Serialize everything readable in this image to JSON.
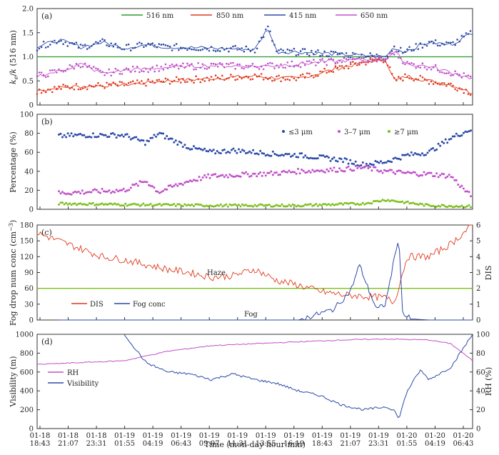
{
  "x_axis": {
    "label": "Time (mon-day hour:min)",
    "ticks": [
      [
        "01-18",
        "18:43"
      ],
      [
        "01-18",
        "21:07"
      ],
      [
        "01-18",
        "23:31"
      ],
      [
        "01-19",
        "01:55"
      ],
      [
        "01-19",
        "04:19"
      ],
      [
        "01-19",
        "06:43"
      ],
      [
        "01-19",
        "09:07"
      ],
      [
        "01-19",
        "11:31"
      ],
      [
        "01-19",
        "13:55"
      ],
      [
        "01-19",
        "16:19"
      ],
      [
        "01-19",
        "18:43"
      ],
      [
        "01-19",
        "21:07"
      ],
      [
        "01-19",
        "23:31"
      ],
      [
        "01-20",
        "01:55"
      ],
      [
        "01-20",
        "04:19"
      ],
      [
        "01-20",
        "06:43"
      ]
    ]
  },
  "chart_data": [
    {
      "panel": "(a)",
      "type": "scatter",
      "ylabel": "ke/k (516 nm)",
      "ylabel_parts": {
        "k1": "k",
        "sub1": "e",
        "slash": "/",
        "k2": "k",
        "rest": " (516 nm)"
      },
      "ylim": [
        0,
        2.0
      ],
      "yticks": [
        "0",
        "0.5",
        "1.0",
        "1.5",
        "2.0"
      ],
      "legend": [
        "516 nm",
        "850 nm",
        "415 nm",
        "650 nm"
      ],
      "legend_placement": "top",
      "colors": {
        "516 nm": "#2e9a2e",
        "850 nm": "#e03a1e",
        "415 nm": "#2c4aa8",
        "650 nm": "#c050c8"
      },
      "series": [
        {
          "name": "516 nm",
          "style": "line",
          "x": [
            0,
            1
          ],
          "y": [
            1.0,
            1.0
          ]
        },
        {
          "name": "850 nm",
          "style": "points+line",
          "x": [
            0,
            0.08,
            0.2,
            0.3,
            0.4,
            0.5,
            0.55,
            0.6,
            0.7,
            0.76,
            0.8,
            0.82,
            0.85,
            0.9,
            0.95,
            1.0
          ],
          "y": [
            0.3,
            0.38,
            0.42,
            0.5,
            0.55,
            0.6,
            0.56,
            0.55,
            0.78,
            0.9,
            0.95,
            0.5,
            0.6,
            0.5,
            0.42,
            0.25
          ]
        },
        {
          "name": "415 nm",
          "style": "points+line",
          "x": [
            0,
            0.05,
            0.1,
            0.15,
            0.2,
            0.25,
            0.3,
            0.4,
            0.5,
            0.53,
            0.55,
            0.6,
            0.7,
            0.8,
            0.82,
            0.84,
            0.9,
            0.95,
            1.0
          ],
          "y": [
            1.2,
            1.35,
            1.2,
            1.3,
            1.18,
            1.25,
            1.2,
            1.18,
            1.15,
            1.6,
            1.1,
            1.1,
            1.05,
            1.0,
            1.2,
            1.1,
            1.3,
            1.25,
            1.5
          ]
        },
        {
          "name": "650 nm",
          "style": "points+line",
          "x": [
            0,
            0.05,
            0.1,
            0.15,
            0.2,
            0.3,
            0.4,
            0.5,
            0.6,
            0.7,
            0.8,
            0.82,
            0.85,
            0.9,
            1.0
          ],
          "y": [
            0.6,
            0.7,
            0.85,
            0.65,
            0.72,
            0.78,
            0.82,
            0.8,
            0.85,
            0.92,
            0.95,
            1.1,
            0.85,
            0.8,
            0.55
          ]
        }
      ]
    },
    {
      "panel": "(b)",
      "type": "scatter",
      "ylabel": "Percentage (%)",
      "ylim": [
        0,
        100
      ],
      "yticks": [
        "0",
        "20",
        "40",
        "60",
        "80",
        "100"
      ],
      "legend": [
        "≤3 μm",
        "3–7 μm",
        "≥7 μm"
      ],
      "legend_placement": "top-right",
      "colors": {
        "≤3 μm": "#2c4aa8",
        "3–7 μm": "#c050c8",
        "≥7 μm": "#7dc01e"
      },
      "series": [
        {
          "name": "≤3 μm",
          "x": [
            0.05,
            0.1,
            0.2,
            0.25,
            0.28,
            0.3,
            0.35,
            0.4,
            0.45,
            0.5,
            0.55,
            0.6,
            0.7,
            0.75,
            0.8,
            0.85,
            0.9,
            0.95,
            1.0
          ],
          "y": [
            77,
            78,
            78,
            70,
            80,
            75,
            65,
            60,
            62,
            60,
            58,
            57,
            52,
            47,
            50,
            57,
            60,
            75,
            85
          ]
        },
        {
          "name": "3–7 μm",
          "x": [
            0.05,
            0.1,
            0.2,
            0.25,
            0.28,
            0.3,
            0.35,
            0.4,
            0.45,
            0.5,
            0.55,
            0.6,
            0.7,
            0.75,
            0.8,
            0.85,
            0.9,
            0.95,
            1.0
          ],
          "y": [
            17,
            18,
            20,
            30,
            18,
            22,
            30,
            35,
            36,
            37,
            38,
            40,
            42,
            44,
            40,
            38,
            37,
            35,
            12
          ]
        },
        {
          "name": "≥7 μm",
          "x": [
            0.05,
            0.2,
            0.4,
            0.6,
            0.75,
            0.8,
            0.9,
            1.0
          ],
          "y": [
            6,
            5,
            4,
            4,
            6,
            10,
            4,
            3
          ]
        }
      ]
    },
    {
      "panel": "(c)",
      "type": "line",
      "ylabel": "Fog drop num conc (cm⁻³)",
      "ylabel_parts": {
        "main": "Fog drop num conc (cm",
        "sup": "−3",
        "close": ")"
      },
      "ylabel_right": "DIS",
      "ylim": [
        0,
        180
      ],
      "yticks": [
        "0",
        "30",
        "60",
        "90",
        "120",
        "150",
        "180"
      ],
      "ylim_right": [
        0,
        6
      ],
      "yticks_right": [
        "0",
        "1",
        "2",
        "3",
        "4",
        "5",
        "6"
      ],
      "legend": [
        "DIS",
        "Fog conc"
      ],
      "legend_placement": "bottom-left",
      "colors": {
        "DIS": "#e03a1e",
        "Fog conc": "#2c4aa8",
        "threshold": "#7dc01e"
      },
      "annotations": [
        "Haze",
        "Fog"
      ],
      "threshold_DIS": 2,
      "series": [
        {
          "name": "DIS",
          "x": [
            0,
            0.05,
            0.1,
            0.15,
            0.2,
            0.25,
            0.3,
            0.35,
            0.4,
            0.45,
            0.5,
            0.55,
            0.6,
            0.65,
            0.7,
            0.75,
            0.8,
            0.82,
            0.85,
            0.9,
            0.95,
            1.0
          ],
          "y": [
            5.5,
            5,
            4.5,
            4.0,
            3.8,
            3.5,
            3.2,
            3.0,
            2.7,
            2.8,
            3.2,
            2.5,
            2.2,
            1.8,
            1.6,
            1.5,
            1.4,
            1.1,
            4.0,
            4.0,
            4.8,
            6.0
          ]
        },
        {
          "name": "Fog conc",
          "x": [
            0.05,
            0.3,
            0.5,
            0.6,
            0.68,
            0.72,
            0.74,
            0.76,
            0.78,
            0.8,
            0.83,
            0.84,
            0.86,
            0.9,
            0.95,
            1.0
          ],
          "y": [
            0,
            0,
            0,
            0,
            20,
            55,
            105,
            60,
            20,
            30,
            158,
            10,
            2,
            0,
            0,
            0
          ]
        }
      ]
    },
    {
      "panel": "(d)",
      "type": "line",
      "ylabel": "Visibility (m)",
      "ylabel_right": "RH (%)",
      "ylim": [
        0,
        1000
      ],
      "yticks": [
        "0",
        "200",
        "400",
        "600",
        "800",
        "1000"
      ],
      "ylim_right": [
        0,
        100
      ],
      "yticks_right": [
        "0",
        "20",
        "40",
        "60",
        "80",
        "100"
      ],
      "legend": [
        "RH",
        "Visibility"
      ],
      "legend_placement": "left",
      "colors": {
        "RH": "#c050c8",
        "Visibility": "#2c4aa8"
      },
      "series": [
        {
          "name": "RH",
          "x": [
            0,
            0.1,
            0.2,
            0.3,
            0.4,
            0.5,
            0.6,
            0.7,
            0.8,
            0.9,
            0.95,
            1.0
          ],
          "y": [
            68,
            70,
            72,
            82,
            88,
            90,
            92,
            94,
            95,
            94,
            90,
            72
          ]
        },
        {
          "name": "Visibility",
          "x": [
            0.2,
            0.25,
            0.3,
            0.35,
            0.4,
            0.45,
            0.5,
            0.55,
            0.6,
            0.65,
            0.7,
            0.75,
            0.8,
            0.82,
            0.83,
            0.85,
            0.88,
            0.9,
            0.95,
            1.0
          ],
          "y": [
            1000,
            700,
            600,
            580,
            520,
            580,
            520,
            480,
            400,
            350,
            250,
            200,
            230,
            200,
            100,
            400,
            620,
            520,
            650,
            1000
          ]
        }
      ]
    }
  ]
}
